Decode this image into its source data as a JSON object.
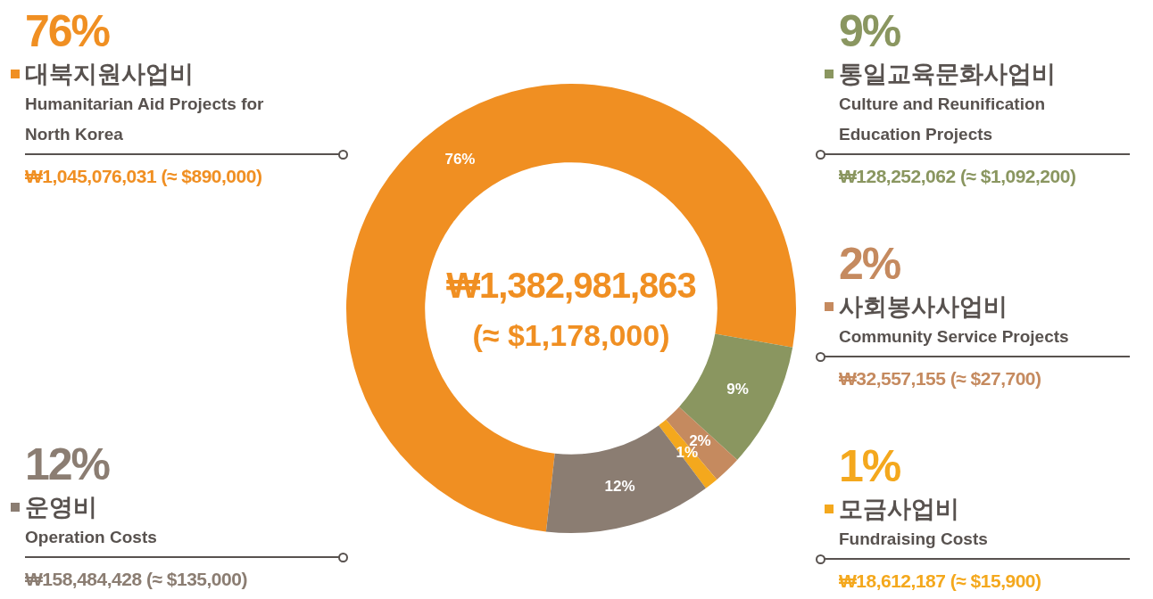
{
  "chart_data": {
    "type": "donut",
    "categories": [
      "대북지원사업비",
      "통일교육문화사업비",
      "사회봉사사업비",
      "모금사업비",
      "운영비"
    ],
    "values": [
      76,
      9,
      2,
      1,
      12
    ],
    "colors": [
      "#f08f22",
      "#8a9660",
      "#c58a5f",
      "#f4a81d",
      "#8b7d72"
    ],
    "value_labels": [
      "76%",
      "9%",
      "2%",
      "1%",
      "12%"
    ],
    "legend": "top left",
    "annotations": [
      "₩1,382,981,863",
      "(≈ $1,178,000)",
      "Humanitarian Aid Projects for North Korea",
      "₩1,045,076,031 (≈ $890,000)",
      "Culture and Reunification Education Projects",
      "₩128,252,062 (≈ $1,092,200)",
      "Community Service Projects",
      "₩32,557,155 (≈ $27,700)",
      "Fundraising Costs",
      "₩18,612,187 (≈ $15,900)",
      "Operation Costs",
      "₩158,484,428 (≈ $135,000)"
    ]
  }
}
